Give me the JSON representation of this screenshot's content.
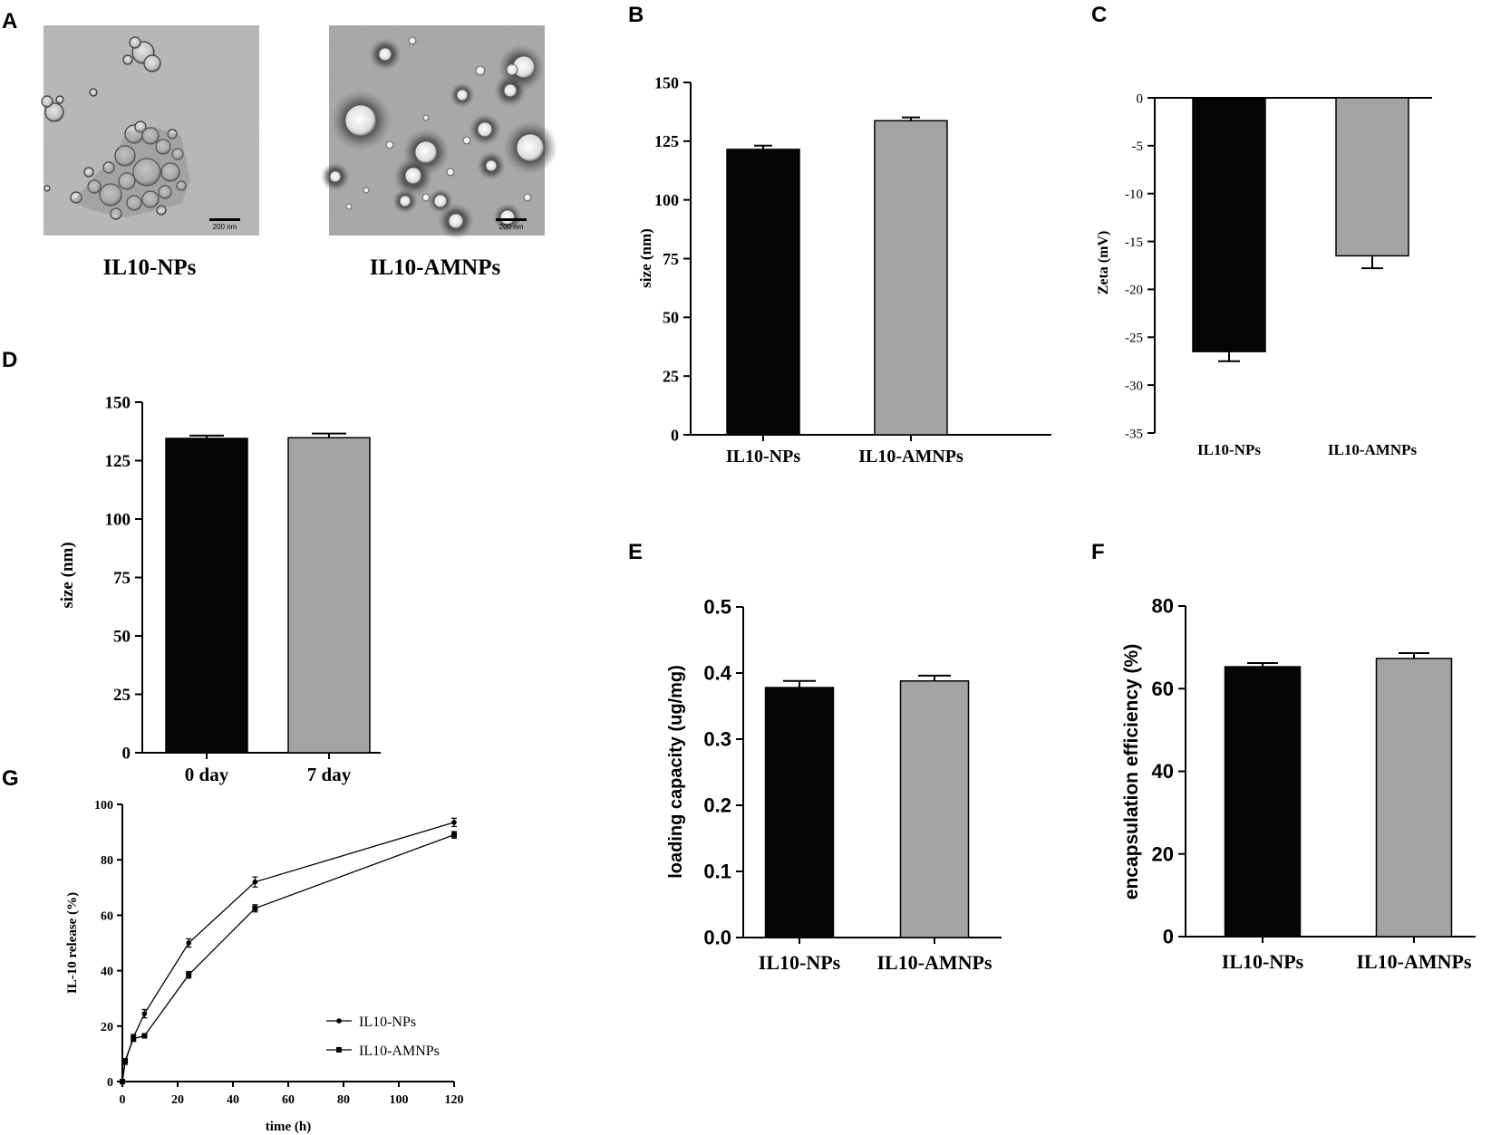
{
  "colors": {
    "black_bar": "#050505",
    "gray_bar": "#a3a3a6",
    "micrograph_light": "#b8b8b8",
    "micrograph_dark": "#9a9a9a"
  },
  "panel_A": {
    "letter": "A",
    "images": [
      {
        "caption": "IL10-NPs",
        "scale_label": "200 nm"
      },
      {
        "caption": "IL10-AMNPs",
        "scale_label": "200 nm"
      }
    ]
  },
  "chart_data": [
    {
      "panel": "B",
      "type": "bar",
      "ylabel": "size (nm)",
      "categories": [
        "IL10-NPs",
        "IL10-AMNPs"
      ],
      "values": [
        121.5,
        133.7
      ],
      "errors": [
        1.6,
        1.4
      ],
      "colors": [
        "#050505",
        "#a3a3a6"
      ],
      "ylim": [
        0,
        150
      ],
      "yticks": [
        0,
        25,
        50,
        75,
        100,
        125,
        150
      ]
    },
    {
      "panel": "C",
      "type": "bar",
      "ylabel": "Zeta (mV)",
      "categories": [
        "IL10-NPs",
        "IL10-AMNPs"
      ],
      "values": [
        -26.5,
        -16.5
      ],
      "errors": [
        1.0,
        1.3
      ],
      "colors": [
        "#050505",
        "#a3a3a6"
      ],
      "ylim": [
        -35,
        0
      ],
      "yticks": [
        0,
        -5,
        -10,
        -15,
        -20,
        -25,
        -30,
        -35
      ]
    },
    {
      "panel": "D",
      "type": "bar",
      "ylabel": "size (nm)",
      "categories": [
        "0 day",
        "7 day"
      ],
      "values": [
        134.5,
        134.8
      ],
      "errors": [
        1.2,
        1.8
      ],
      "colors": [
        "#050505",
        "#a3a3a6"
      ],
      "ylim": [
        0,
        150
      ],
      "yticks": [
        0,
        25,
        50,
        75,
        100,
        125,
        150
      ]
    },
    {
      "panel": "E",
      "type": "bar",
      "ylabel": "loading capacity (ug/mg)",
      "categories": [
        "IL10-NPs",
        "IL10-AMNPs"
      ],
      "values": [
        0.378,
        0.388
      ],
      "errors": [
        0.01,
        0.008
      ],
      "colors": [
        "#050505",
        "#a3a3a6"
      ],
      "ylim": [
        0,
        0.5
      ],
      "yticks": [
        "0.0",
        "0.1",
        "0.2",
        "0.3",
        "0.4",
        "0.5"
      ]
    },
    {
      "panel": "F",
      "type": "bar",
      "ylabel": "encapsulation efficiency (%)",
      "categories": [
        "IL10-NPs",
        "IL10-AMNPs"
      ],
      "values": [
        65.3,
        67.3
      ],
      "errors": [
        0.9,
        1.3
      ],
      "colors": [
        "#050505",
        "#a3a3a6"
      ],
      "ylim": [
        0,
        80
      ],
      "yticks": [
        0,
        20,
        40,
        60,
        80
      ]
    },
    {
      "panel": "G",
      "type": "line",
      "xlabel": "time (h)",
      "ylabel": "IL-10 release (%)",
      "xlim": [
        0,
        120
      ],
      "ylim": [
        0,
        100
      ],
      "xticks": [
        0,
        20,
        40,
        60,
        80,
        100,
        120
      ],
      "yticks": [
        0,
        20,
        40,
        60,
        80,
        100
      ],
      "series": [
        {
          "name": "IL10-NPs",
          "marker": "circle",
          "x": [
            0,
            1,
            4,
            8,
            24,
            48,
            120
          ],
          "y": [
            0,
            7,
            16,
            24.5,
            50,
            72,
            93.5
          ],
          "err": [
            0.3,
            0.8,
            1.0,
            1.5,
            1.5,
            1.8,
            1.5
          ]
        },
        {
          "name": "IL10-AMNPs",
          "marker": "square",
          "x": [
            0,
            1,
            4,
            8,
            24,
            48,
            120
          ],
          "y": [
            0,
            7.5,
            15.5,
            16.5,
            38.5,
            62.5,
            89
          ],
          "err": [
            0.3,
            0.8,
            1.0,
            0.8,
            1.2,
            1.3,
            1.2
          ]
        }
      ]
    }
  ]
}
